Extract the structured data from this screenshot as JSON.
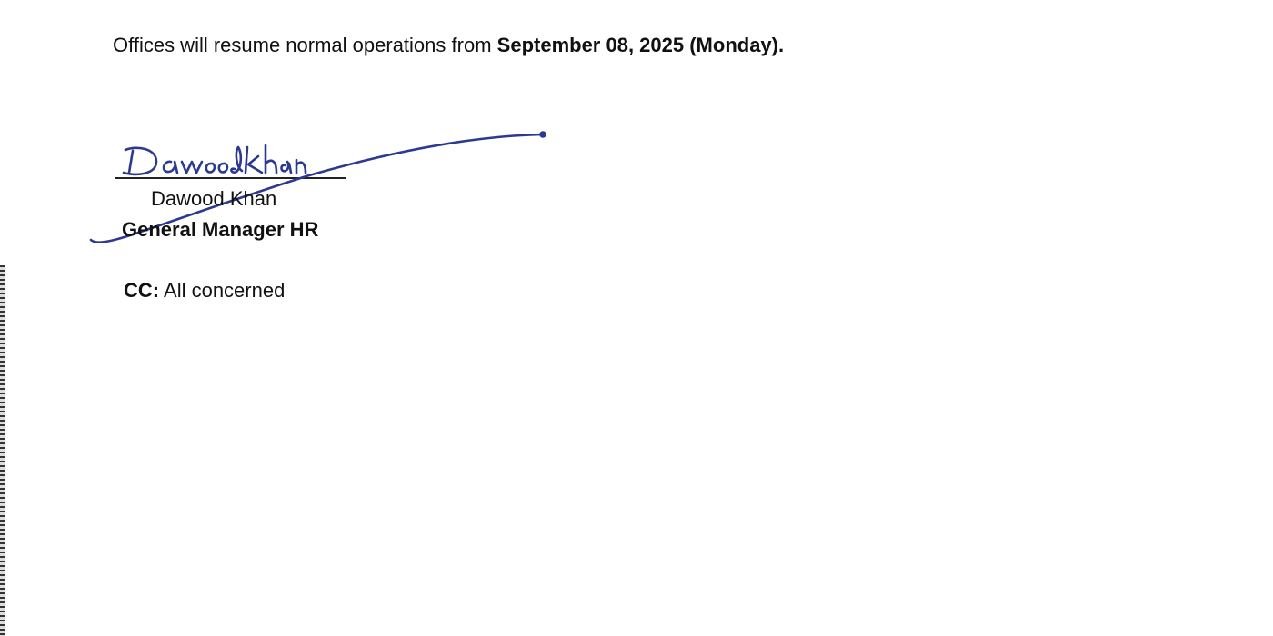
{
  "notice": {
    "resume_text": "Offices will resume normal operations from",
    "resume_date": "September 08, 2025 (Monday)."
  },
  "signature": {
    "name": "Dawood Khan",
    "designation": "General Manager HR"
  },
  "cc": {
    "label": "CC:",
    "text": "All concerned"
  }
}
